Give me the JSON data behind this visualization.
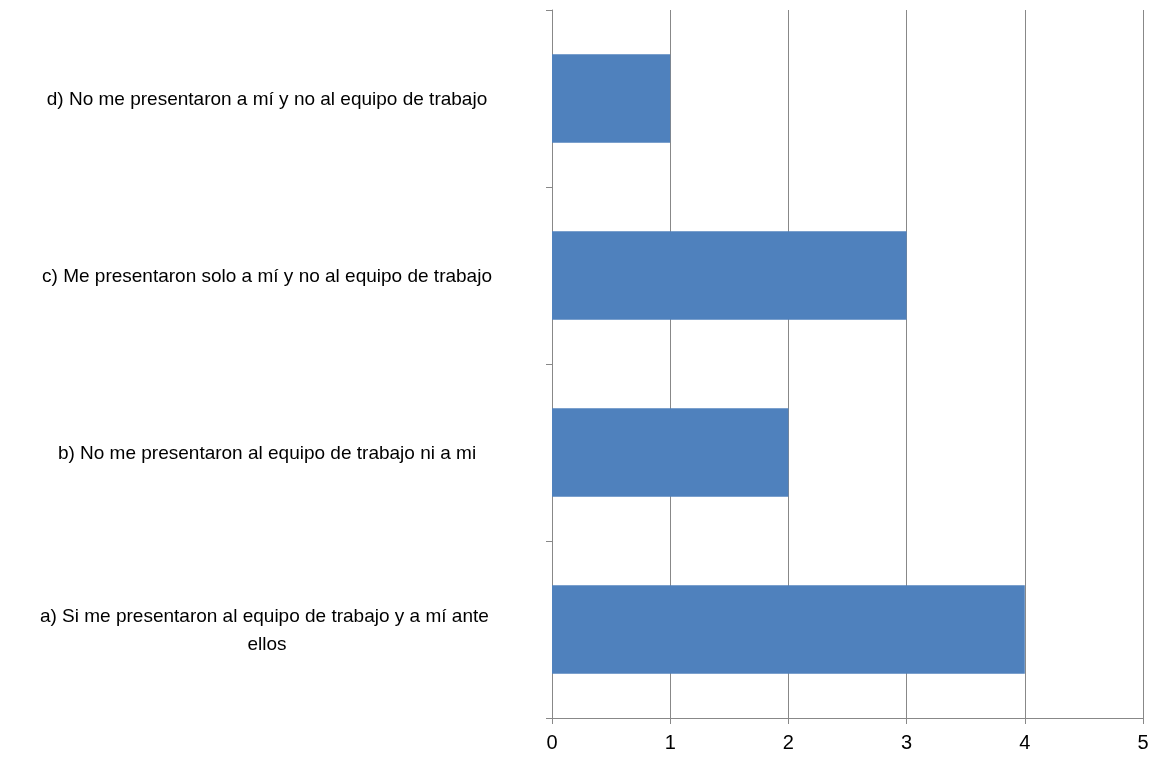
{
  "chart_data": {
    "type": "bar",
    "orientation": "horizontal",
    "categories": [
      "d) No me presentaron a mí y no al equipo de trabajo",
      "c) Me presentaron solo a mí y no al equipo de trabajo",
      "b) No me presentaron al equipo de trabajo ni a mi",
      "a) Si me presentaron al equipo de trabajo y a mí ante ellos"
    ],
    "values": [
      1,
      3,
      2,
      4
    ],
    "color": "#4f81bd",
    "xlim": [
      0,
      5
    ],
    "xticks": [
      0,
      1,
      2,
      3,
      4,
      5
    ],
    "grid": "x"
  }
}
